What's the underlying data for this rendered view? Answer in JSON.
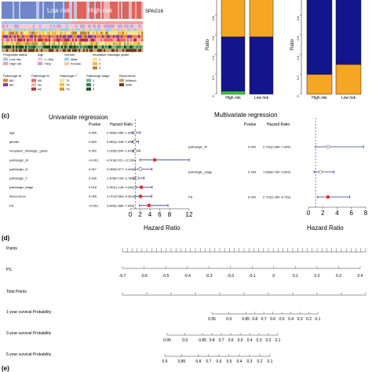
{
  "heatmap": {
    "gene_label": "SPAG16",
    "group_low": "Low risk",
    "group_high": "High risk",
    "legend": {
      "prognostic_status": {
        "title": "Prognostic status",
        "items": [
          "Low risk",
          "High risk"
        ]
      },
      "age": {
        "title": "Age",
        "items": [
          "<= 60y",
          ">60y"
        ]
      },
      "gender": {
        "title": "Gender",
        "items": [
          "Male",
          "Female"
        ]
      },
      "grade": {
        "title": "neoplasm histologic grade",
        "items": [
          "1",
          "2",
          "3"
        ]
      },
      "pathologic_m": {
        "title": "Pathologic M",
        "items": [
          "M0",
          "M1"
        ]
      },
      "pathologic_n": {
        "title": "Pathologic N",
        "items": [
          "N0",
          "N1",
          "N2"
        ]
      },
      "pathologic_t": {
        "title": "Pathologic T",
        "items": [
          "T1",
          "T2",
          "T3"
        ]
      },
      "pathologic_stage": {
        "title": "Pathologic stage",
        "items": [
          "1",
          "2",
          "3"
        ]
      },
      "recurrence": {
        "title": "Recurrence",
        "items": [
          "Without",
          "With"
        ]
      }
    },
    "colors": {
      "low": "#a9c4e8",
      "high": "#f0a49a",
      "age1": "#f3c7d6",
      "age2": "#c9a0d8",
      "male": "#9ecfe6",
      "female": "#f7c79d",
      "grade1": "#f6e58a",
      "grade2": "#f1b54b",
      "grade3": "#b9823a",
      "m0": "#f07b3a",
      "m1": "#7a3ea0",
      "n0": "#e86a6a",
      "n1": "#f5b1b1",
      "n2": "#b03a3a",
      "t1": "#f5e28b",
      "t2": "#f5c04a",
      "t3": "#c7982d",
      "s1": "#7ab38a",
      "s2": "#2f8b52",
      "s3": "#164b2a",
      "without": "#cfa06a",
      "with": "#6b3f1a"
    }
  },
  "panel_c": {
    "label": "(c)",
    "uni": {
      "title": "Univariate regression",
      "col_p": "Pvalue",
      "col_hr": "Hazard Ratio",
      "xlabel": "Hazard Ratio",
      "ticks": [
        "0",
        "2",
        "4",
        "6",
        "8",
        "12"
      ],
      "rows": [
        {
          "name": "age",
          "p": "0.955",
          "hr": "0.980(0.485~1.980)"
        },
        {
          "name": "gender",
          "p": "0.654",
          "hr": "0.861(0.448~1.656)"
        },
        {
          "name": "neoplasm_histologic_grade",
          "p": "0.952",
          "hr": "1.020(0.540~1.926)"
        },
        {
          "name": "pathologic_M",
          "p": "<0.001",
          "hr": "4.974(2.011~12.296)"
        },
        {
          "name": "pathologic_N",
          "p": "0.057",
          "hr": "2.080(0.977~4.428)"
        },
        {
          "name": "pathologic_T",
          "p": "0.330",
          "hr": "1.405(0.709~2.786)"
        },
        {
          "name": "pathologic_stage",
          "p": "0.018",
          "hr": "2.261(1.148~4.456)"
        },
        {
          "name": "Recurrence",
          "p": "0.035",
          "hr": "2.071(0.963~4.362)"
        },
        {
          "name": "PS",
          "p": "<0.001",
          "hr": "3.809(1.886~7.695)"
        }
      ]
    },
    "multi": {
      "title": "Multivariate regression",
      "col_p": "Pvalue",
      "col_hr": "Hazard Ratio",
      "xlabel": "Hazard Ratio",
      "ticks": [
        "0",
        "2",
        "4",
        "6",
        "8"
      ],
      "rows": [
        {
          "name": "pathologic_M",
          "p": "0.054",
          "hr": "2.751(0.984~7.695)"
        },
        {
          "name": "pathologic_stage",
          "p": "0.185",
          "hr": "1.669(0.782~3.559)"
        },
        {
          "name": "PS",
          "p": "0.009",
          "hr": "2.723(1.289~5.753)"
        }
      ]
    }
  },
  "panel_d": {
    "label": "(d)",
    "rows": {
      "points": "Points",
      "ps": "PS",
      "total_points": "Total Points",
      "y1": "1-year survival Probability",
      "y3": "3-year survival Probability",
      "y5": "5-year survival Probability"
    },
    "ps_ticks": [
      "-0.7",
      "-0.6",
      "-0.5",
      "-0.4",
      "-0.3",
      "-0.2",
      "-0.1",
      "0",
      "0.1",
      "0.2",
      "0.3",
      "0.4"
    ],
    "y1_ticks": [
      "0.95",
      "0.9",
      "0.85",
      "0.8",
      "0.7",
      "0.6",
      "0.5",
      "0.4",
      "0.3",
      "0.2",
      "0.1"
    ],
    "y3_ticks": [
      "0.95",
      "0.9",
      "0.85",
      "0.8",
      "0.7",
      "0.6",
      "0.5",
      "0.4",
      "0.3",
      "0.2",
      "0.1"
    ],
    "y5_ticks": [
      "0.9",
      "0.85",
      "0.8",
      "0.7",
      "0.6",
      "0.5",
      "0.4",
      "0.3",
      "0.2",
      "0.1"
    ]
  },
  "panel_e_label": "(e)",
  "chart_data": [
    {
      "type": "bar",
      "stacked": true,
      "ylabel": "Ratio",
      "categories": [
        "High risk",
        "Low risk"
      ],
      "ylim": [
        0,
        1
      ],
      "series": [
        {
          "values": [
            0.03,
            0.0
          ],
          "color": "#33cc33"
        },
        {
          "values": [
            0.55,
            0.58
          ],
          "color": "#13158c"
        },
        {
          "values": [
            0.42,
            0.42
          ],
          "color": "#f5a623"
        }
      ]
    },
    {
      "type": "bar",
      "stacked": true,
      "ylabel": "Ratio",
      "categories": [
        "High risk",
        "Low risk"
      ],
      "ylim": [
        0,
        1
      ],
      "series": [
        {
          "values": [
            0.2,
            0.3
          ],
          "color": "#f5a623"
        },
        {
          "values": [
            0.8,
            0.7
          ],
          "color": "#13158c"
        }
      ]
    },
    {
      "type": "forest",
      "title": "Univariate regression",
      "xlabel": "Hazard Ratio",
      "xlim": [
        0,
        12
      ],
      "categories": [
        "age",
        "gender",
        "neoplasm_histologic_grade",
        "pathologic_M",
        "pathologic_N",
        "pathologic_T",
        "pathologic_stage",
        "Recurrence",
        "PS"
      ],
      "hr": [
        0.98,
        0.861,
        1.02,
        4.974,
        2.08,
        1.405,
        2.261,
        2.071,
        3.809
      ],
      "lower": [
        0.485,
        0.448,
        0.54,
        2.011,
        0.977,
        0.709,
        1.148,
        0.963,
        1.886
      ],
      "upper": [
        1.98,
        1.656,
        1.926,
        12.296,
        4.428,
        2.786,
        4.456,
        4.362,
        7.695
      ]
    },
    {
      "type": "forest",
      "title": "Multivariate regression",
      "xlabel": "Hazard Ratio",
      "xlim": [
        0,
        8
      ],
      "categories": [
        "pathologic_M",
        "pathologic_stage",
        "PS"
      ],
      "hr": [
        2.751,
        1.669,
        2.723
      ],
      "lower": [
        0.984,
        0.782,
        1.289
      ],
      "upper": [
        7.695,
        3.559,
        5.753
      ]
    },
    {
      "type": "nomogram",
      "points_range": [
        0,
        100
      ],
      "ps_range": [
        -0.7,
        0.4
      ]
    }
  ]
}
